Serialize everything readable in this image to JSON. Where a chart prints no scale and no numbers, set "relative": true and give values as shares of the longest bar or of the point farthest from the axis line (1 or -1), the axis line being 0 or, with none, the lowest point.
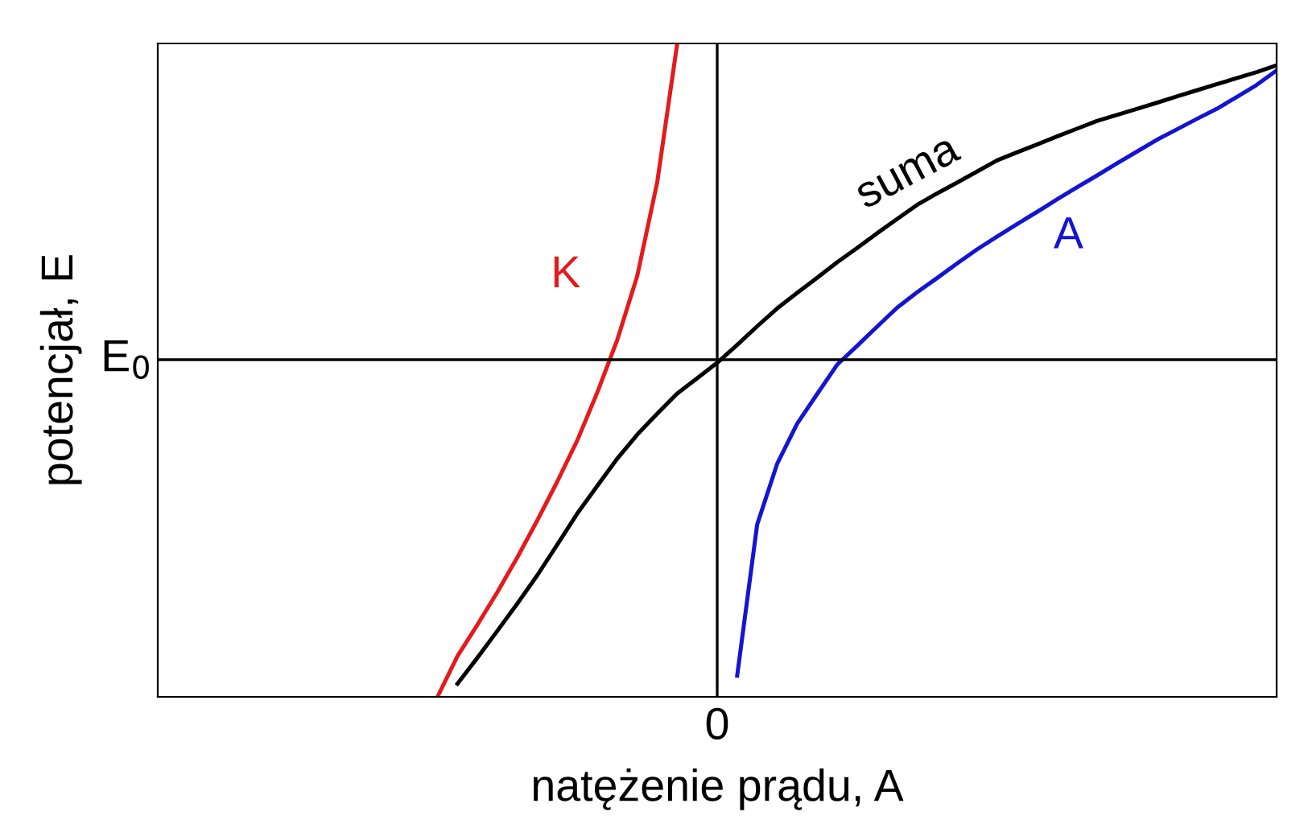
{
  "chart_data": {
    "type": "line",
    "relative": true,
    "xlabel": "natężenie prądu, A",
    "ylabel": "potencjał, E",
    "annotations": [
      "E$_{0}$",
      "0"
    ],
    "legend": false,
    "marker": "none",
    "line_style": "solid",
    "categories": [
      null,
      null,
      null,
      null,
      null,
      null,
      null,
      null,
      null,
      null,
      null,
      null,
      null,
      null,
      null,
      null,
      null,
      null,
      null,
      null,
      null,
      null,
      null,
      null,
      null,
      null,
      null,
      null,
      null,
      null,
      null,
      null,
      null,
      null,
      null,
      null,
      null,
      null,
      null,
      null,
      null,
      null,
      null,
      null,
      null,
      null,
      null,
      null,
      null,
      null,
      null,
      null,
      null,
      null,
      null,
      null,
      null
    ],
    "series": [
      {
        "name": "K",
        "color": "#e41a1c",
        "values": [
          null,
          null,
          null,
          null,
          null,
          null,
          null,
          null,
          null,
          null,
          null,
          null,
          null,
          null,
          -1.0,
          -0.879,
          -0.786,
          -0.689,
          -0.586,
          -0.476,
          -0.361,
          -0.239,
          -0.097,
          0.059,
          0.249,
          0.527,
          0.938,
          null,
          null,
          null,
          null,
          null,
          null,
          null,
          null,
          null,
          null,
          null,
          null,
          null,
          null,
          null,
          null,
          null,
          null,
          null,
          null,
          null,
          null,
          null,
          null,
          null,
          null,
          null,
          null,
          null,
          null
        ]
      },
      {
        "name": "A",
        "color": "#1414d2",
        "values": [
          null,
          null,
          null,
          null,
          null,
          null,
          null,
          null,
          null,
          null,
          null,
          null,
          null,
          null,
          null,
          null,
          null,
          null,
          null,
          null,
          null,
          null,
          null,
          null,
          null,
          null,
          null,
          null,
          null,
          -0.937,
          -0.489,
          -0.309,
          -0.19,
          -0.102,
          -0.015,
          0.041,
          0.098,
          0.154,
          0.2,
          0.242,
          0.285,
          0.327,
          0.365,
          0.402,
          0.438,
          0.475,
          0.511,
          0.546,
          0.582,
          0.617,
          0.652,
          0.683,
          0.714,
          0.744,
          0.779,
          0.815,
          0.858
        ]
      },
      {
        "name": "suma",
        "color": "#000000",
        "values": [
          null,
          null,
          null,
          null,
          null,
          null,
          null,
          null,
          null,
          null,
          null,
          null,
          null,
          null,
          null,
          -0.961,
          -0.884,
          -0.804,
          -0.723,
          -0.639,
          -0.548,
          -0.456,
          -0.374,
          -0.293,
          -0.222,
          -0.16,
          -0.1,
          -0.055,
          -0.009,
          0.044,
          0.099,
          0.152,
          0.198,
          0.243,
          0.289,
          0.331,
          0.375,
          0.417,
          0.459,
          0.493,
          0.525,
          0.558,
          0.591,
          0.615,
          0.638,
          0.662,
          0.685,
          0.708,
          0.726,
          0.744,
          0.762,
          0.781,
          0.799,
          0.817,
          0.835,
          0.853,
          0.873
        ]
      }
    ]
  }
}
